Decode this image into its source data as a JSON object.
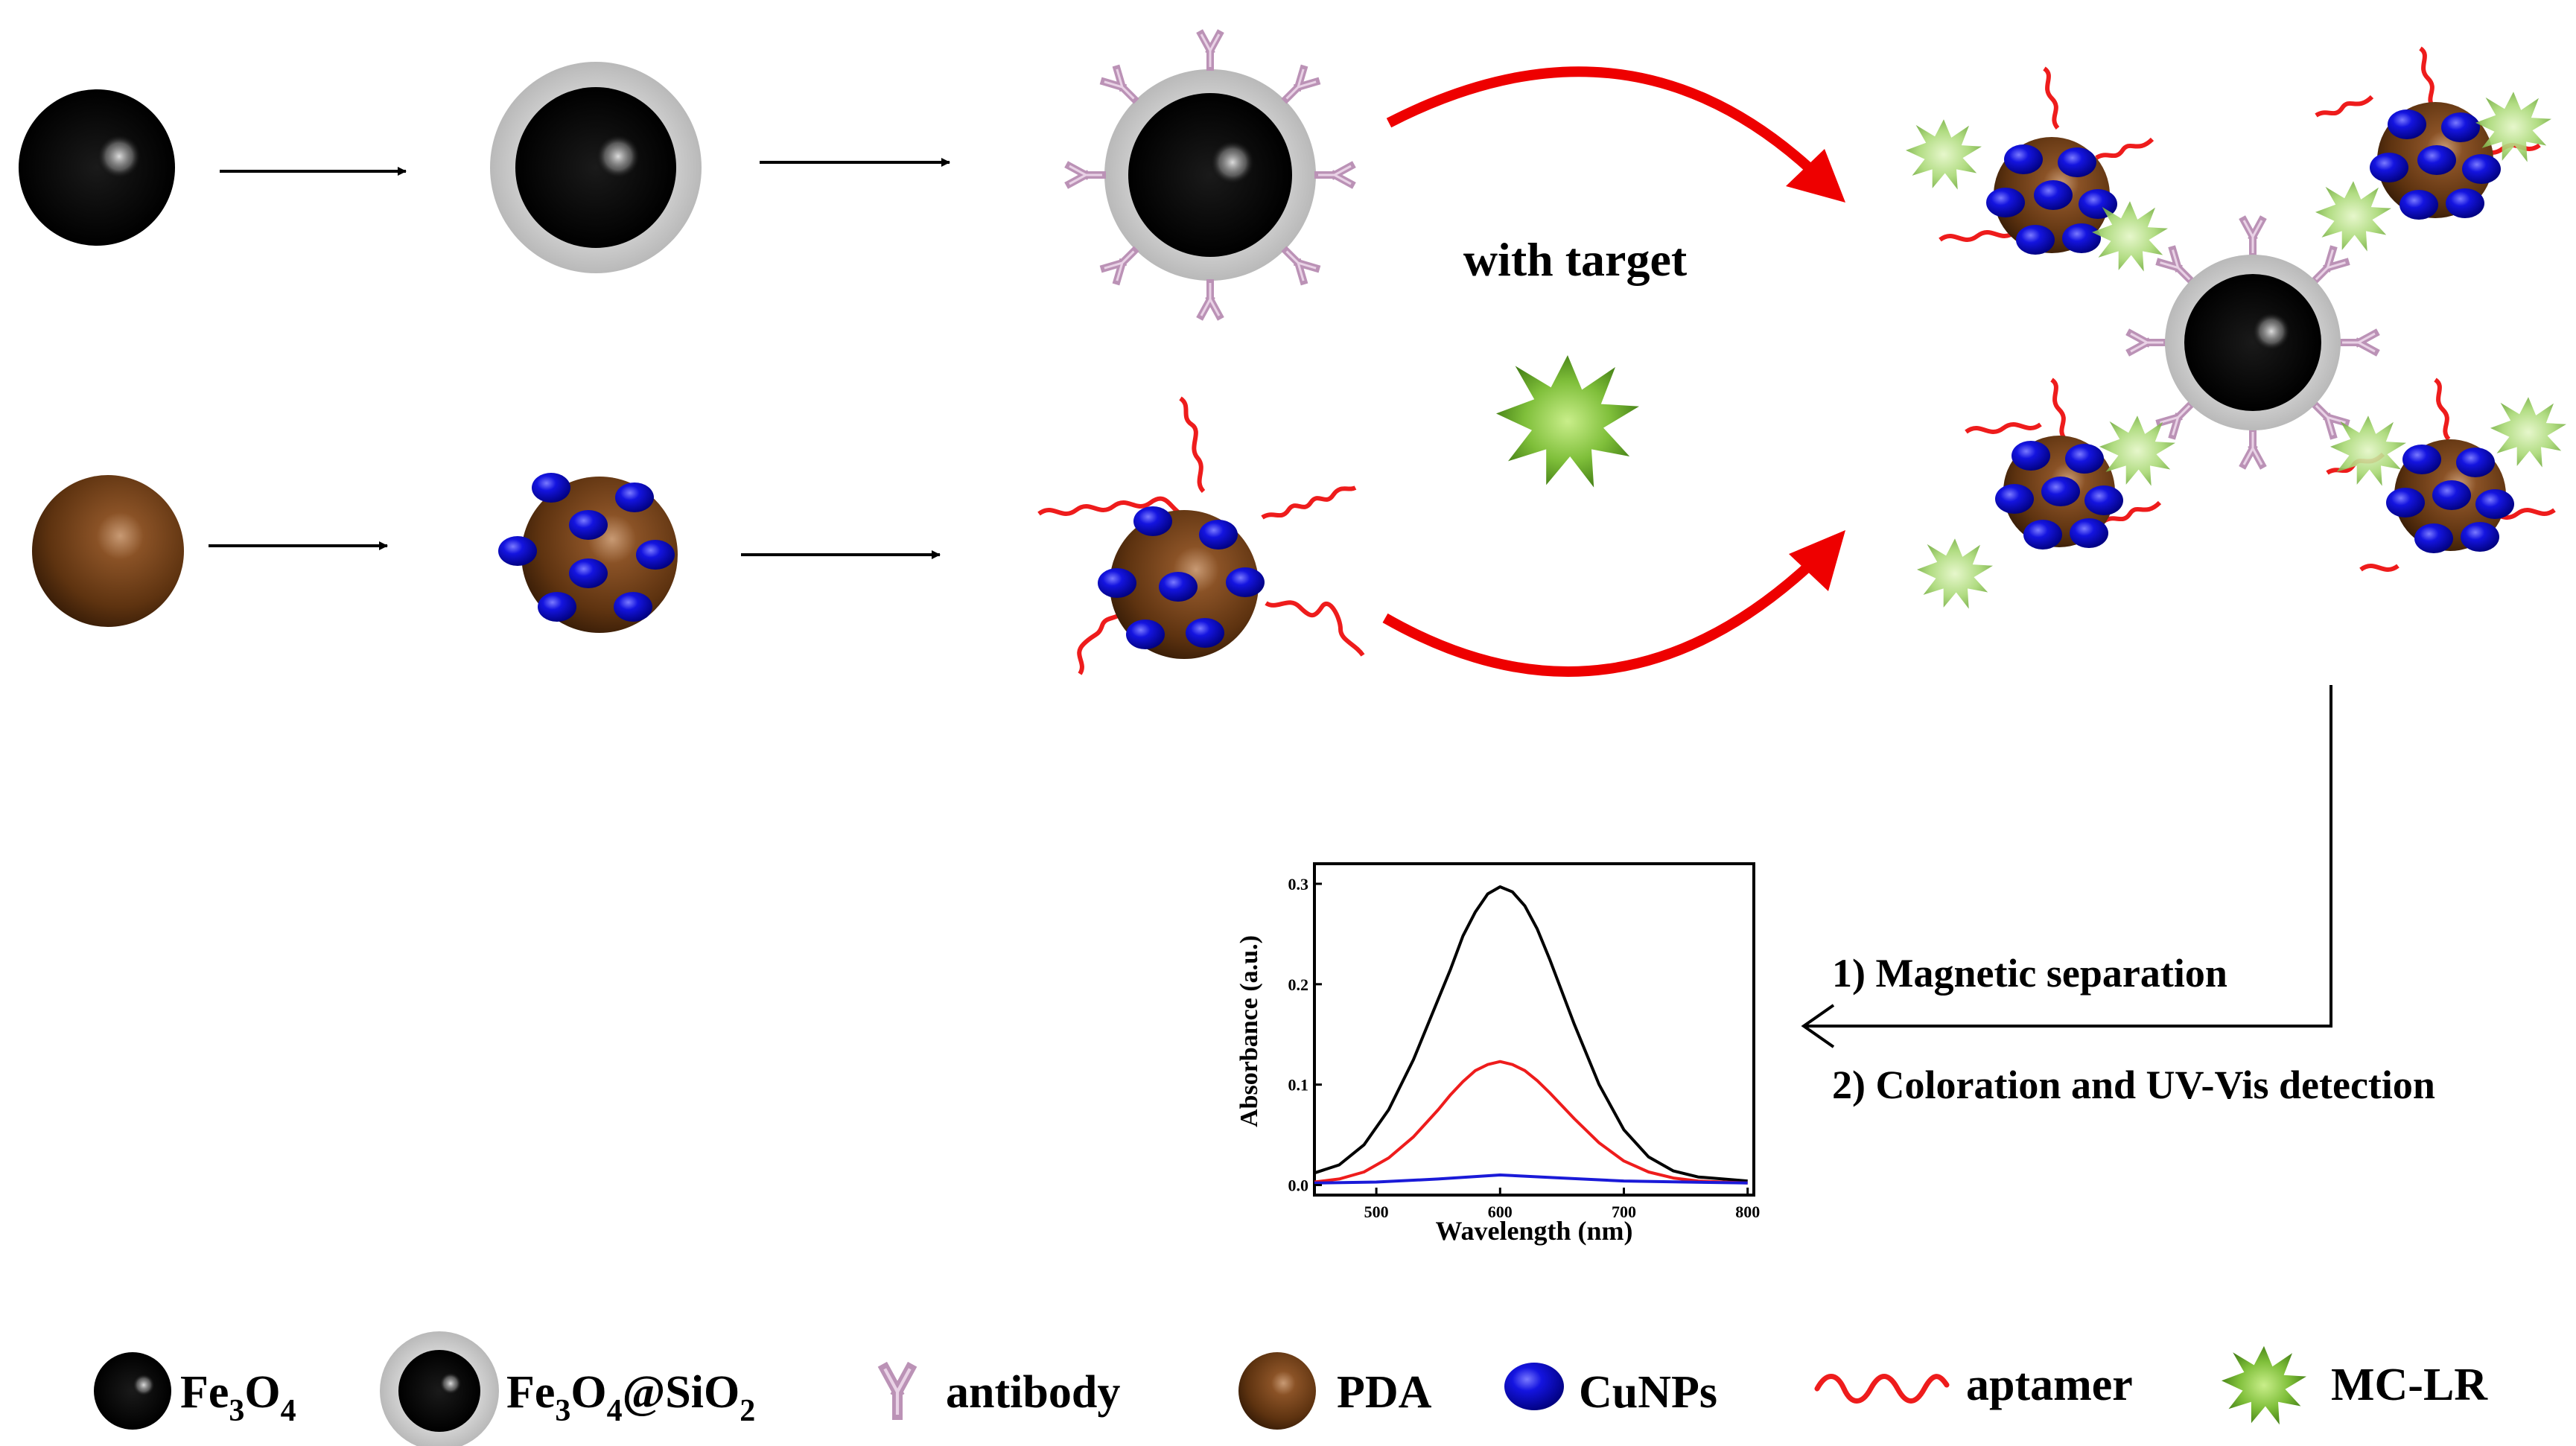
{
  "annotations": {
    "with_target": "with target",
    "step1": "1) Magnetic separation",
    "step2": "2) Coloration and UV-Vis detection"
  },
  "legend": {
    "fe3o4": {
      "base": "Fe",
      "sub1": "3",
      "mid": "O",
      "sub2": "4"
    },
    "fe3o4_sio2": {
      "base": "Fe",
      "sub1": "3",
      "mid": "O",
      "sub2": "4",
      "tail": "@SiO",
      "sub3": "2"
    },
    "antibody": "antibody",
    "pda": "PDA",
    "cunps": "CuNPs",
    "aptamer": "aptamer",
    "mclr": "MC-LR"
  },
  "colors": {
    "fe3o4": "#000000",
    "sio2_shell": "#c8c8c8",
    "pda": "#6b3a14",
    "cunps": "#0a0ad0",
    "aptamer": "#ee1c1c",
    "antibody": "#c9a3c4",
    "mclr": "#7fbf3a",
    "arrow_red": "#ee0000"
  },
  "chart_data": {
    "type": "line",
    "title": "",
    "xlabel": "Wavelength (nm)",
    "ylabel": "Absorbance (a.u.)",
    "xlim": [
      450,
      805
    ],
    "ylim": [
      -0.01,
      0.32
    ],
    "xticks": [
      500,
      600,
      700,
      800
    ],
    "yticks": [
      0.0,
      0.1,
      0.2,
      0.3
    ],
    "xtick_labels": [
      "500",
      "600",
      "700",
      "800"
    ],
    "ytick_labels": [
      "0.0",
      "0.1",
      "0.2",
      "0.3"
    ],
    "series": [
      {
        "color": "#000000",
        "x": [
          450,
          470,
          490,
          510,
          530,
          550,
          560,
          570,
          580,
          590,
          600,
          610,
          620,
          630,
          640,
          660,
          680,
          700,
          720,
          740,
          760,
          780,
          800
        ],
        "y": [
          0.012,
          0.02,
          0.04,
          0.075,
          0.125,
          0.185,
          0.215,
          0.248,
          0.272,
          0.29,
          0.297,
          0.292,
          0.278,
          0.255,
          0.225,
          0.16,
          0.1,
          0.055,
          0.028,
          0.014,
          0.008,
          0.006,
          0.004
        ]
      },
      {
        "color": "#ee1c1c",
        "x": [
          450,
          470,
          490,
          510,
          530,
          550,
          560,
          570,
          580,
          590,
          600,
          610,
          620,
          630,
          640,
          660,
          680,
          700,
          720,
          740,
          760,
          780,
          800
        ],
        "y": [
          0.003,
          0.006,
          0.013,
          0.027,
          0.048,
          0.075,
          0.09,
          0.103,
          0.114,
          0.12,
          0.123,
          0.12,
          0.114,
          0.104,
          0.092,
          0.066,
          0.042,
          0.024,
          0.013,
          0.007,
          0.004,
          0.003,
          0.002
        ]
      },
      {
        "color": "#1a1ad8",
        "x": [
          450,
          500,
          550,
          600,
          650,
          700,
          750,
          800
        ],
        "y": [
          0.002,
          0.003,
          0.006,
          0.01,
          0.007,
          0.004,
          0.003,
          0.002
        ]
      }
    ]
  }
}
